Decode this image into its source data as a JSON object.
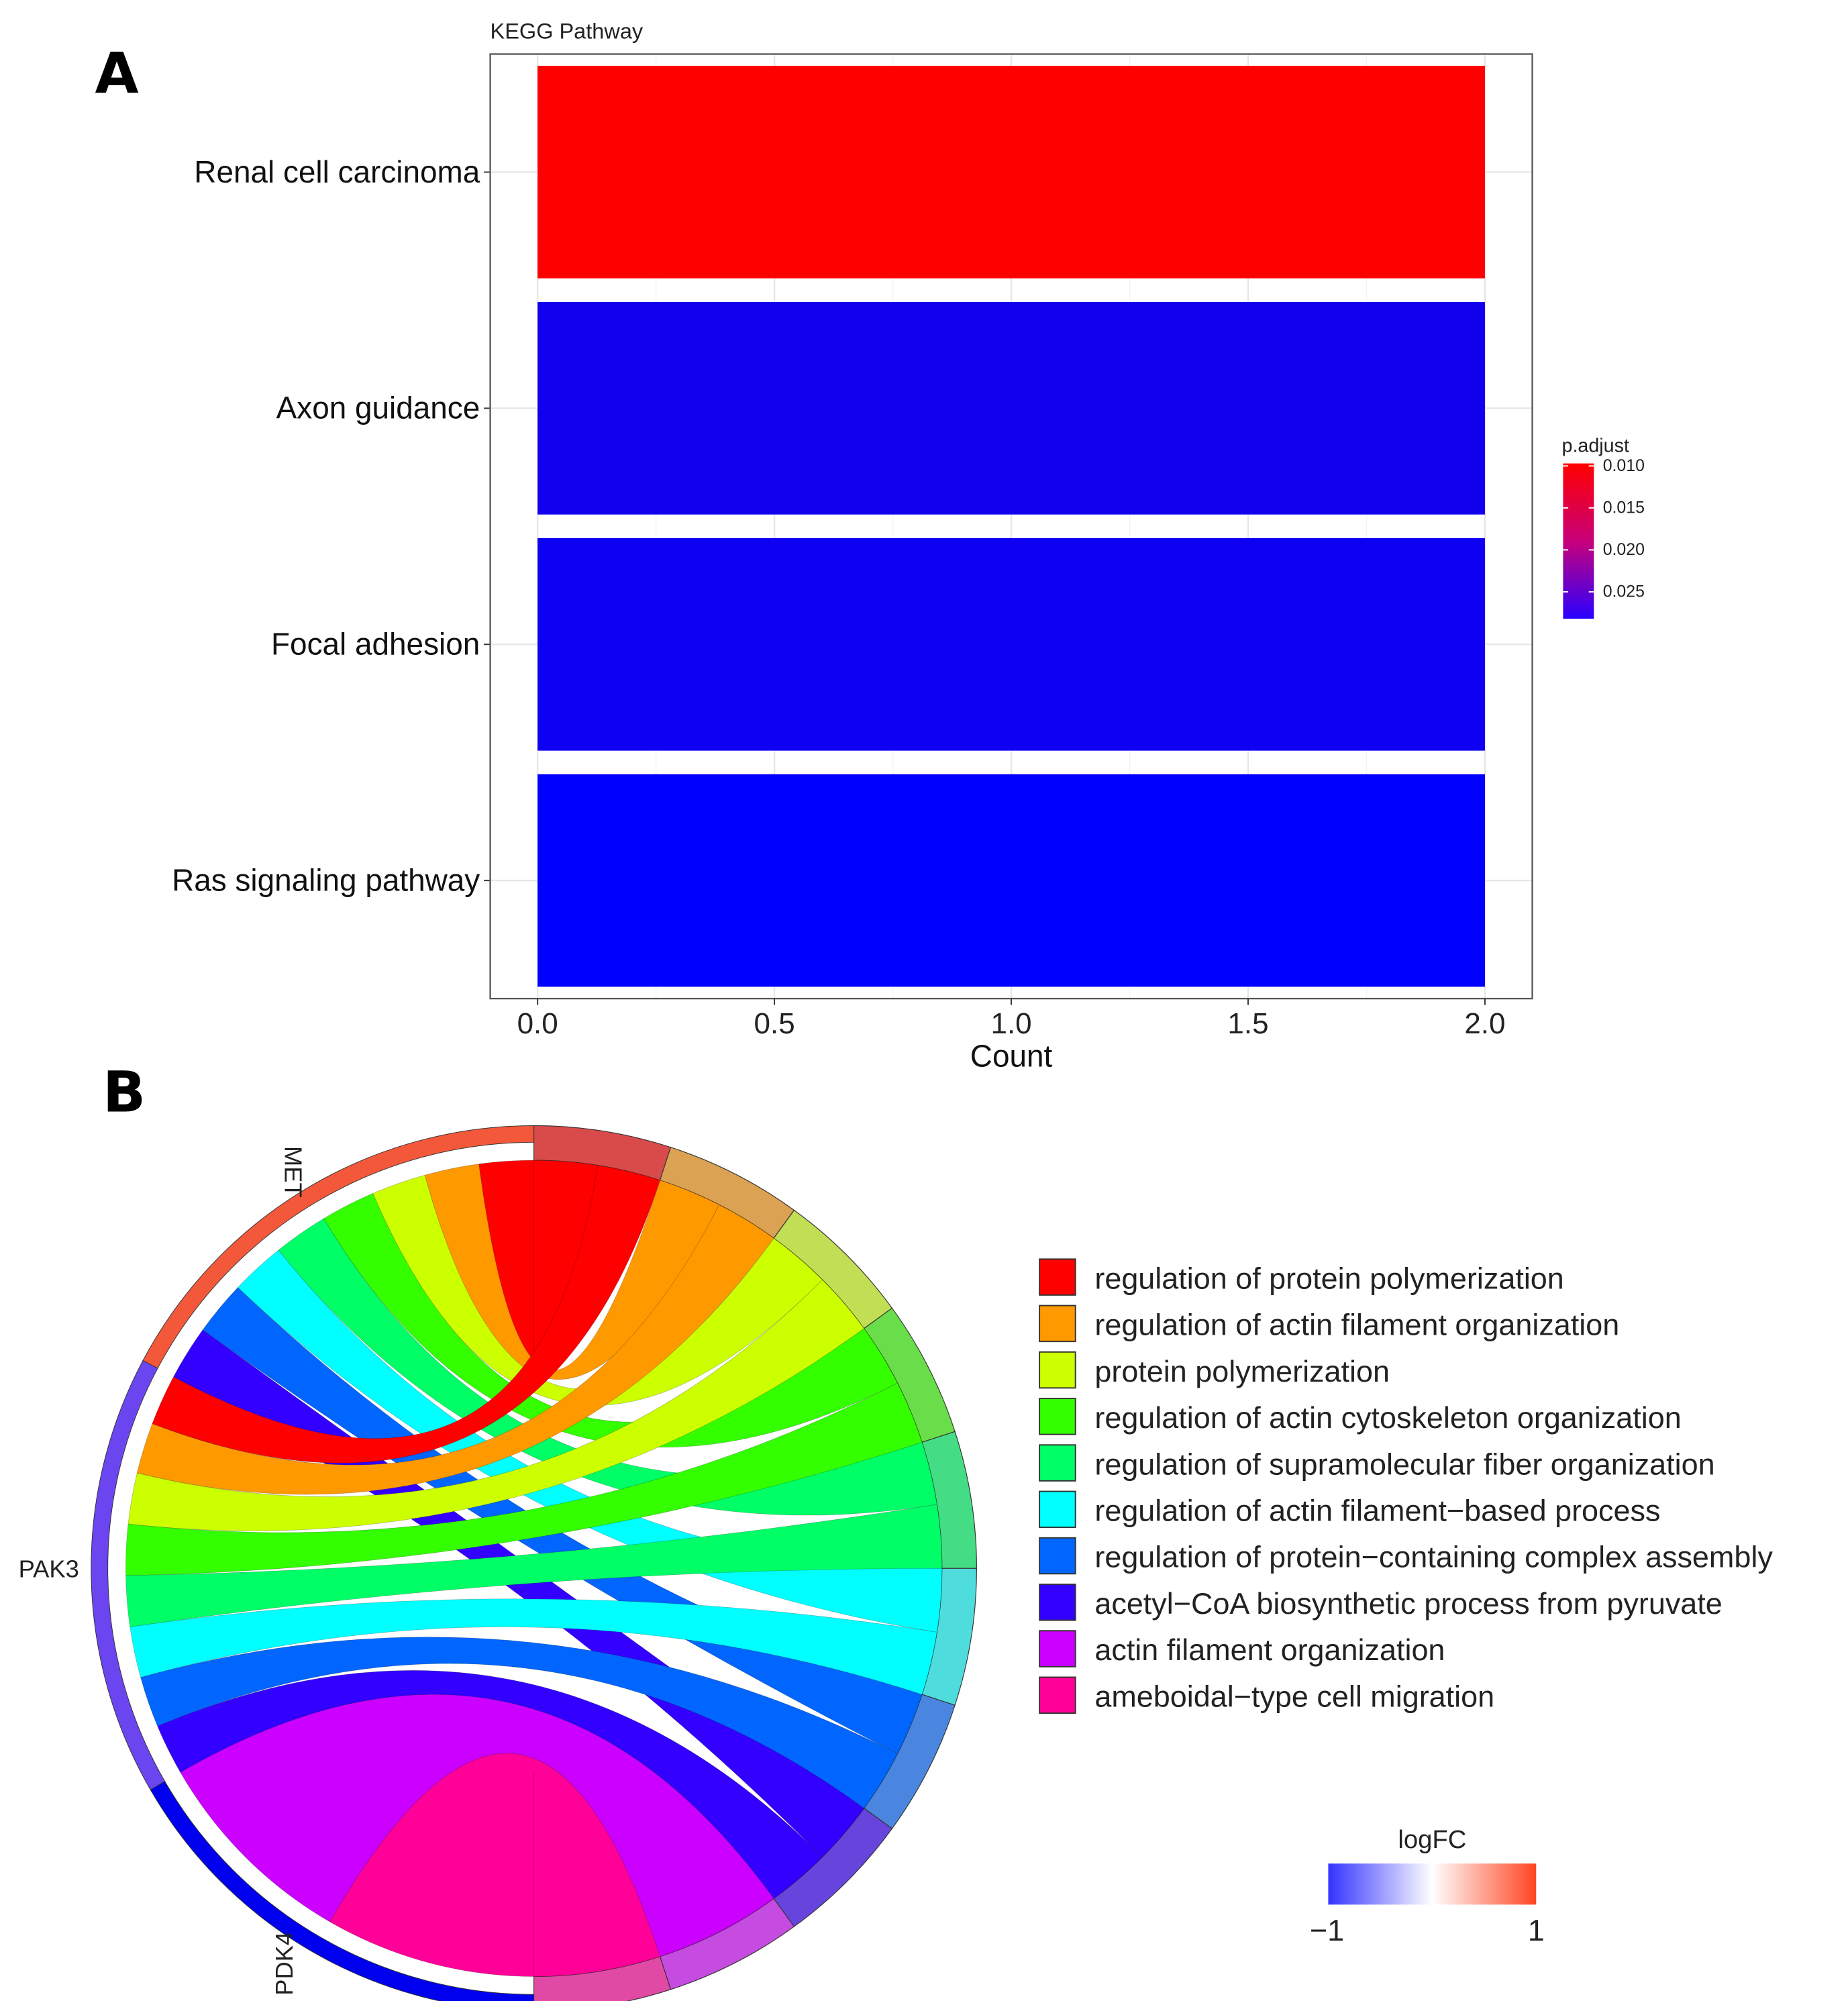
{
  "chart_data": [
    {
      "panel_label": "A",
      "type": "bar",
      "orientation": "horizontal",
      "title": "KEGG Pathway",
      "xlabel": "Count",
      "ylabel": "",
      "categories": [
        "Renal cell carcinoma",
        "Axon guidance",
        "Focal adhesion",
        "Ras signaling pathway"
      ],
      "values": [
        2,
        2,
        2,
        2
      ],
      "p_adjust": [
        0.0097,
        0.027,
        0.0272,
        0.0282
      ],
      "xlim": [
        -0.1,
        2.1
      ],
      "xticks": [
        "0.0",
        "0.5",
        "1.0",
        "1.5",
        "2.0"
      ],
      "grid": true,
      "colorbar": {
        "title": "p.adjust",
        "ticks": [
          "0.010",
          "0.015",
          "0.020",
          "0.025"
        ],
        "range": [
          0.0097,
          0.0282
        ],
        "low_color": "#ff0000",
        "high_color": "#0000ff"
      },
      "legend_placement": "right"
    },
    {
      "panel_label": "B",
      "type": "chord",
      "genes": [
        {
          "name": "MET",
          "logFC": 0.7,
          "color": "#f4583a"
        },
        {
          "name": "PAK3",
          "logFC": -0.7,
          "color": "#6a45f0"
        },
        {
          "name": "PDK4",
          "logFC": -1,
          "color": "#0000ee"
        }
      ],
      "terms": [
        {
          "name": "regulation of protein polymerization",
          "color": "#ff0000",
          "ring": "#d94b4b"
        },
        {
          "name": "regulation of actin filament organization",
          "color": "#ff9900",
          "ring": "#dba253"
        },
        {
          "name": "protein polymerization",
          "color": "#ccff00",
          "ring": "#c2de55"
        },
        {
          "name": "regulation of actin cytoskeleton organization",
          "color": "#33ff00",
          "ring": "#6ade4a"
        },
        {
          "name": "regulation of supramolecular fiber organization",
          "color": "#00ff66",
          "ring": "#44dc84"
        },
        {
          "name": "regulation of actin filament−based process",
          "color": "#00ffff",
          "ring": "#4fdcdc"
        },
        {
          "name": "regulation of protein−containing complex assembly",
          "color": "#0066ff",
          "ring": "#4a86e0"
        },
        {
          "name": "acetyl−CoA biosynthetic process from pyruvate",
          "color": "#3300ff",
          "ring": "#6745dd"
        },
        {
          "name": "actin filament organization",
          "color": "#cc00ff",
          "ring": "#c64be0"
        },
        {
          "name": "ameboidal−type cell migration",
          "color": "#ff0099",
          "ring": "#e04aa4"
        }
      ],
      "links": [
        [
          "MET",
          0
        ],
        [
          "MET",
          1
        ],
        [
          "MET",
          2
        ],
        [
          "MET",
          3
        ],
        [
          "MET",
          4
        ],
        [
          "MET",
          5
        ],
        [
          "MET",
          6
        ],
        [
          "MET",
          7
        ],
        [
          "PAK3",
          0
        ],
        [
          "PAK3",
          1
        ],
        [
          "PAK3",
          2
        ],
        [
          "PAK3",
          3
        ],
        [
          "PAK3",
          4
        ],
        [
          "PAK3",
          5
        ],
        [
          "PAK3",
          6
        ],
        [
          "PAK3",
          7
        ],
        [
          "PDK4",
          8
        ],
        [
          "PDK4",
          9
        ]
      ],
      "logfc_legend": {
        "title": "logFC",
        "min_label": "−1",
        "max_label": "1",
        "low_color": "#3333ff",
        "mid_color": "#ffffff",
        "high_color": "#ff3311"
      }
    }
  ]
}
